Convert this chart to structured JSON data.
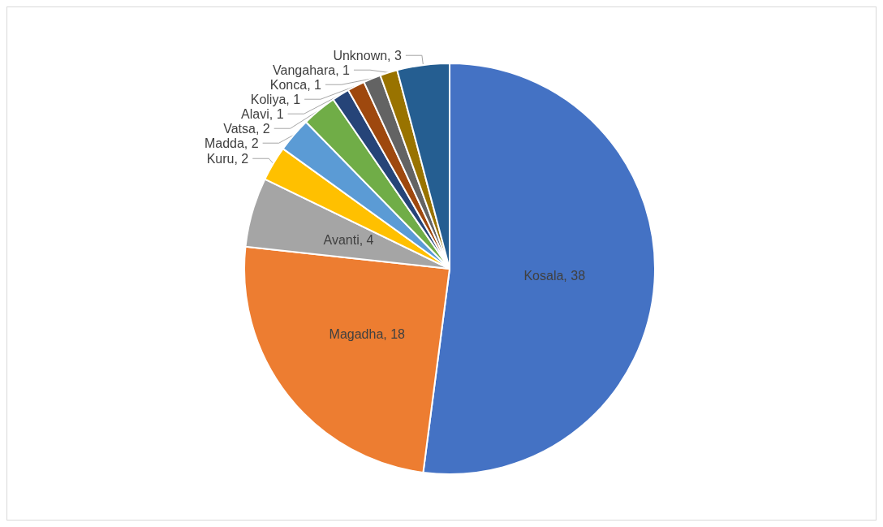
{
  "chart_data": {
    "type": "pie",
    "categories": [
      "Kosala",
      "Magadha",
      "Avanti",
      "Kuru",
      "Madda",
      "Vatsa",
      "Alavi",
      "Koliya",
      "Konca",
      "Vangahara",
      "Unknown"
    ],
    "values": [
      38,
      18,
      4,
      2,
      2,
      2,
      1,
      1,
      1,
      1,
      3
    ],
    "colors": [
      "#4472c4",
      "#ed7d31",
      "#a5a5a5",
      "#ffc000",
      "#5b9bd5",
      "#70ad47",
      "#264478",
      "#9e480e",
      "#636363",
      "#997300",
      "#255e91"
    ],
    "value_labels": [
      ", 38",
      ", 18",
      ", 4",
      ", 2",
      ", 2",
      ", 2",
      ", 1",
      ", 1",
      ", 1",
      ", 1",
      ", 3"
    ],
    "data_labels": true,
    "legend": false
  }
}
